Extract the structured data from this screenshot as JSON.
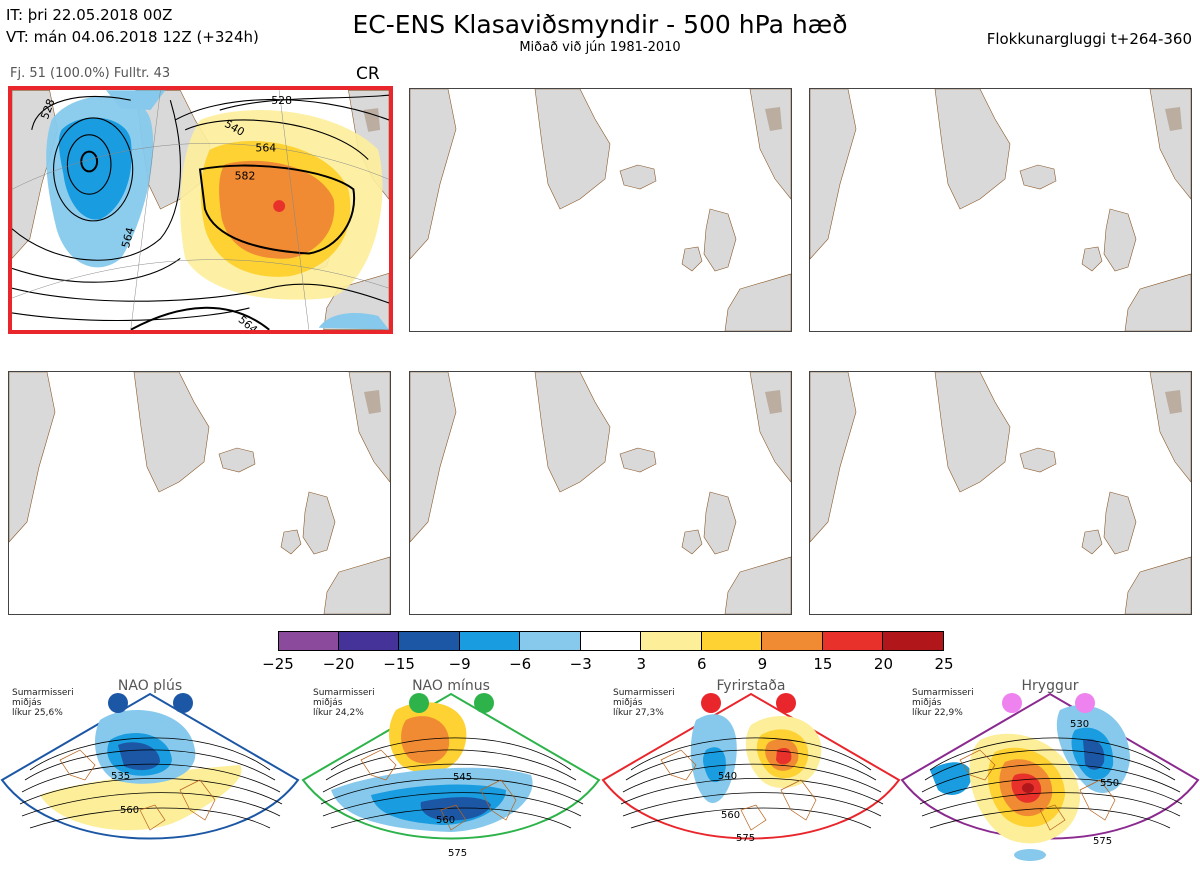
{
  "header": {
    "it_line": "IT: þri 22.05.2018 00Z",
    "vt_line": "VT: mán 04.06.2018 12Z  (+324h)",
    "title": "EC-ENS Klasaviðsmyndir - 500 hPa hæð",
    "subtitle": "Miðað við jún 1981-2010",
    "window": "Flokkunargluggi t+264-360"
  },
  "panel1": {
    "info": "Fj. 51 (100.0%)   Fulltr. 43",
    "tag": "CR",
    "contour_labels": [
      "528",
      "540",
      "564",
      "582",
      "564",
      "564",
      "528"
    ]
  },
  "colorbar": {
    "colors": [
      "#8b4a9b",
      "#45339a",
      "#1c57a5",
      "#1a9ce0",
      "#86c9ec",
      "#ffffff",
      "#fdee9a",
      "#fdd232",
      "#f08a33",
      "#e8312b",
      "#b1161b"
    ],
    "ticks": [
      "−25",
      "−20",
      "−15",
      "−9",
      "−6",
      "−3",
      "3",
      "6",
      "9",
      "15",
      "20",
      "25"
    ]
  },
  "regimes": [
    {
      "name": "NAO plús",
      "season": "Sumarmisseri",
      "median": "miðjás",
      "prob": "líkur 25,6%",
      "color": "#1c57a5",
      "labels": [
        "535",
        "560"
      ]
    },
    {
      "name": "NAO mínus",
      "season": "Sumarmisseri",
      "median": "miðjás",
      "prob": "líkur 24,2%",
      "color": "#2db34a",
      "labels": [
        "545",
        "560",
        "575"
      ]
    },
    {
      "name": "Fyrirstaða",
      "season": "Sumarmisseri",
      "median": "miðjás",
      "prob": "líkur 27,3%",
      "color": "#e8262b",
      "labels": [
        "540",
        "560",
        "575"
      ]
    },
    {
      "name": "Hryggur",
      "season": "Sumarmisseri",
      "median": "miðjás",
      "prob": "líkur 22,9%",
      "color": "#8a2a8f",
      "labels": [
        "530",
        "550",
        "575"
      ]
    }
  ]
}
